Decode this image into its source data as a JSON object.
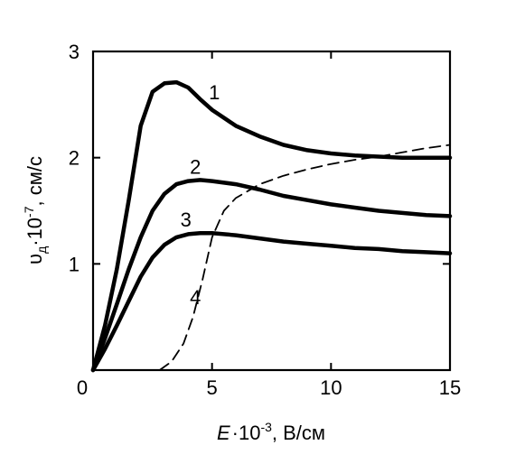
{
  "chart_data": {
    "type": "line",
    "title": "",
    "xlabel": "E·10⁻³, В/см",
    "ylabel": "υд·10⁻⁷, см/с",
    "xlim": [
      0,
      15
    ],
    "ylim": [
      0,
      3
    ],
    "x_ticks": [
      0,
      5,
      10,
      15
    ],
    "y_ticks": [
      1,
      2,
      3
    ],
    "grid": false,
    "series": [
      {
        "name": "1",
        "line_style": "solid",
        "x": [
          0,
          0.5,
          1,
          1.5,
          2,
          2.5,
          3,
          3.5,
          4,
          4.5,
          5,
          6,
          7,
          8,
          9,
          10,
          11,
          12,
          13,
          14,
          15
        ],
        "y": [
          0,
          0.42,
          0.95,
          1.6,
          2.3,
          2.62,
          2.7,
          2.71,
          2.66,
          2.55,
          2.45,
          2.3,
          2.2,
          2.12,
          2.07,
          2.04,
          2.02,
          2.01,
          2.0,
          2.0,
          2.0
        ]
      },
      {
        "name": "2",
        "line_style": "solid",
        "x": [
          0,
          0.5,
          1,
          1.5,
          2,
          2.5,
          3,
          3.5,
          4,
          4.5,
          5,
          6,
          7,
          8,
          9,
          10,
          11,
          12,
          13,
          14,
          15
        ],
        "y": [
          0,
          0.3,
          0.62,
          0.95,
          1.25,
          1.5,
          1.66,
          1.75,
          1.78,
          1.79,
          1.78,
          1.75,
          1.7,
          1.64,
          1.6,
          1.56,
          1.53,
          1.5,
          1.48,
          1.46,
          1.45
        ]
      },
      {
        "name": "3",
        "line_style": "solid",
        "x": [
          0,
          0.5,
          1,
          1.5,
          2,
          2.5,
          3,
          3.5,
          4,
          4.5,
          5,
          6,
          7,
          8,
          9,
          10,
          11,
          12,
          13,
          14,
          15
        ],
        "y": [
          0,
          0.2,
          0.42,
          0.65,
          0.88,
          1.06,
          1.18,
          1.25,
          1.28,
          1.29,
          1.29,
          1.27,
          1.24,
          1.21,
          1.19,
          1.17,
          1.15,
          1.14,
          1.12,
          1.11,
          1.1
        ]
      },
      {
        "name": "4",
        "line_style": "dashed",
        "x": [
          2.8,
          3.3,
          3.8,
          4.2,
          4.6,
          5.0,
          5.5,
          6.0,
          7.0,
          8.0,
          9.0,
          10.0,
          11.0,
          12.0,
          13.0,
          14.0,
          15.0
        ],
        "y": [
          0,
          0.08,
          0.25,
          0.5,
          0.85,
          1.25,
          1.5,
          1.62,
          1.75,
          1.83,
          1.89,
          1.94,
          1.98,
          2.01,
          2.05,
          2.09,
          2.12
        ]
      }
    ]
  }
}
